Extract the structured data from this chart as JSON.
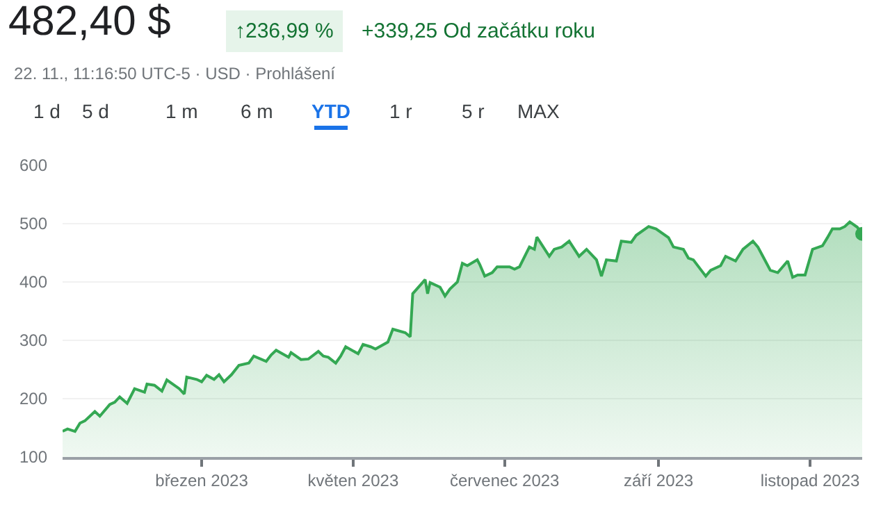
{
  "chart_data": {
    "type": "area",
    "title": "482,40 $",
    "subtitle": "22. 11., 11:16:50 UTC-5 · USD · Prohlášení",
    "annotations": [
      "↑236,99 %",
      "+339,25 Od začátku roku",
      "1 d",
      "5 d",
      "1 m",
      "6 m",
      "YTD",
      "1 r",
      "5 r",
      "MAX"
    ],
    "x": [
      "2023-01-04",
      "2023-01-06",
      "2023-01-09",
      "2023-01-11",
      "2023-01-13",
      "2023-01-17",
      "2023-01-19",
      "2023-01-23",
      "2023-01-25",
      "2023-01-27",
      "2023-01-30",
      "2023-02-02",
      "2023-02-06",
      "2023-02-07",
      "2023-02-10",
      "2023-02-13",
      "2023-02-15",
      "2023-02-20",
      "2023-02-22",
      "2023-02-23",
      "2023-02-27",
      "2023-03-01",
      "2023-03-03",
      "2023-03-06",
      "2023-03-08",
      "2023-03-10",
      "2023-03-13",
      "2023-03-16",
      "2023-03-20",
      "2023-03-22",
      "2023-03-27",
      "2023-03-29",
      "2023-03-31",
      "2023-04-05",
      "2023-04-06",
      "2023-04-10",
      "2023-04-13",
      "2023-04-17",
      "2023-04-19",
      "2023-04-21",
      "2023-04-24",
      "2023-04-26",
      "2023-04-28",
      "2023-05-03",
      "2023-05-05",
      "2023-05-08",
      "2023-05-10",
      "2023-05-15",
      "2023-05-17",
      "2023-05-22",
      "2023-05-24",
      "2023-05-25",
      "2023-05-30",
      "2023-05-31",
      "2023-06-01",
      "2023-06-05",
      "2023-06-07",
      "2023-06-09",
      "2023-06-12",
      "2023-06-14",
      "2023-06-16",
      "2023-06-20",
      "2023-06-21",
      "2023-06-23",
      "2023-06-26",
      "2023-06-28",
      "2023-07-03",
      "2023-07-05",
      "2023-07-07",
      "2023-07-11",
      "2023-07-13",
      "2023-07-14",
      "2023-07-19",
      "2023-07-21",
      "2023-07-24",
      "2023-07-27",
      "2023-07-31",
      "2023-08-03",
      "2023-08-07",
      "2023-08-09",
      "2023-08-11",
      "2023-08-15",
      "2023-08-17",
      "2023-08-21",
      "2023-08-23",
      "2023-08-28",
      "2023-08-31",
      "2023-09-05",
      "2023-09-07",
      "2023-09-11",
      "2023-09-13",
      "2023-09-15",
      "2023-09-20",
      "2023-09-22",
      "2023-09-26",
      "2023-09-28",
      "2023-10-02",
      "2023-10-05",
      "2023-10-09",
      "2023-10-11",
      "2023-10-13",
      "2023-10-16",
      "2023-10-19",
      "2023-10-23",
      "2023-10-25",
      "2023-10-27",
      "2023-10-30",
      "2023-11-02",
      "2023-11-06",
      "2023-11-08",
      "2023-11-10",
      "2023-11-13",
      "2023-11-15",
      "2023-11-17",
      "2023-11-20",
      "2023-11-22"
    ],
    "series": [
      {
        "color": "#34a853",
        "values": [
          144,
          148,
          144,
          158,
          162,
          178,
          170,
          190,
          194,
          203,
          192,
          217,
          211,
          225,
          223,
          213,
          232,
          217,
          208,
          237,
          233,
          229,
          240,
          233,
          241,
          229,
          241,
          257,
          261,
          273,
          264,
          275,
          283,
          271,
          279,
          267,
          268,
          281,
          273,
          271,
          261,
          273,
          289,
          277,
          293,
          289,
          285,
          297,
          319,
          313,
          306,
          380,
          404,
          380,
          399,
          391,
          376,
          388,
          400,
          432,
          428,
          438,
          430,
          410,
          416,
          426,
          426,
          422,
          426,
          460,
          456,
          477,
          444,
          456,
          460,
          470,
          444,
          456,
          438,
          410,
          438,
          436,
          470,
          468,
          480,
          495,
          491,
          476,
          460,
          456,
          441,
          438,
          410,
          420,
          428,
          444,
          436,
          456,
          470,
          460,
          444,
          420,
          416,
          436,
          408,
          412,
          412,
          456,
          462,
          476,
          491,
          491,
          495,
          503,
          494,
          482.4
        ]
      }
    ],
    "xlim": [
      "2023-01-04",
      "2023-11-22"
    ],
    "xticks": [
      {
        "value": "2023-03-01",
        "label": "březen 2023"
      },
      {
        "value": "2023-05-01",
        "label": "květen 2023"
      },
      {
        "value": "2023-07-01",
        "label": "červenec 2023"
      },
      {
        "value": "2023-09-01",
        "label": "září 2023"
      },
      {
        "value": "2023-11-01",
        "label": "listopad 2023"
      }
    ],
    "ylim": [
      100,
      600
    ],
    "yticks": [
      100,
      200,
      300,
      400,
      500,
      600
    ],
    "grid": "y",
    "legend": false
  }
}
